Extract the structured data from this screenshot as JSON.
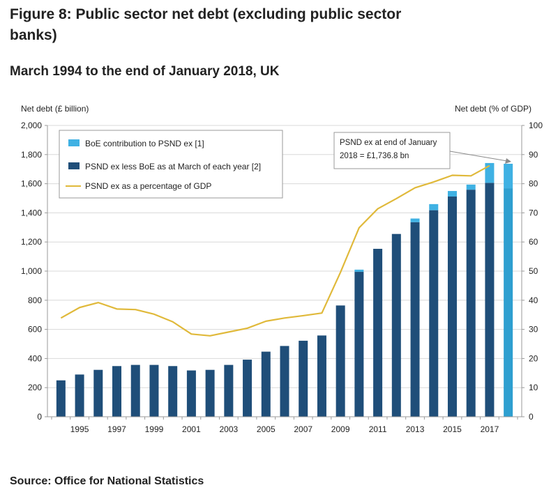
{
  "title": "Figure 8: Public sector net debt (excluding public sector banks)",
  "subtitle": "March 1994 to the end of January 2018, UK",
  "source": "Source: Office for National Statistics",
  "colors": {
    "boe": "#3fb1e3",
    "psnd": "#1f4e79",
    "latest": "#2e9fd0",
    "line": "#e0b93a",
    "grid": "#d9d9d9"
  },
  "chart_data": {
    "type": "bar",
    "ylabel": "Net debt (£ billion)",
    "y2label": "Net debt (% of GDP)",
    "ylim": [
      0,
      2000
    ],
    "y2lim": [
      0,
      100
    ],
    "yticks": [
      "0",
      "200",
      "400",
      "600",
      "800",
      "1,000",
      "1,200",
      "1,400",
      "1,600",
      "1,800",
      "2,000"
    ],
    "y2ticks": [
      "0",
      "10",
      "20",
      "30",
      "40",
      "50",
      "60",
      "70",
      "80",
      "90",
      "100"
    ],
    "categories": [
      "1994",
      "1995",
      "1996",
      "1997",
      "1998",
      "1999",
      "2000",
      "2001",
      "2002",
      "2003",
      "2004",
      "2005",
      "2006",
      "2007",
      "2008",
      "2009",
      "2010",
      "2011",
      "2012",
      "2013",
      "2014",
      "2015",
      "2016",
      "2017",
      "2018"
    ],
    "xtick_labels": [
      "1995",
      "1997",
      "1999",
      "2001",
      "2003",
      "2005",
      "2007",
      "2009",
      "2011",
      "2013",
      "2015",
      "2017"
    ],
    "stacked": true,
    "series": [
      {
        "name": "PSND ex less BoE as at March of each year [2]",
        "kind": "bar",
        "values": [
          250,
          290,
          322,
          348,
          356,
          356,
          348,
          318,
          322,
          356,
          392,
          447,
          486,
          522,
          558,
          764,
          995,
          1153,
          1255,
          1336,
          1418,
          1512,
          1559,
          1606,
          1569
        ]
      },
      {
        "name": "BoE contribution to PSND ex [1]",
        "kind": "bar",
        "values": [
          0,
          0,
          0,
          0,
          0,
          0,
          0,
          0,
          0,
          0,
          0,
          0,
          0,
          0,
          0,
          0,
          15,
          0,
          0,
          25,
          42,
          38,
          35,
          136,
          168
        ]
      },
      {
        "name": "PSND ex as a percentage of GDP",
        "kind": "line",
        "axis": "right",
        "values": [
          33.9,
          37.5,
          39.2,
          37.0,
          36.8,
          35.2,
          32.6,
          28.4,
          27.8,
          29.1,
          30.4,
          32.8,
          33.9,
          34.7,
          35.6,
          49.6,
          64.9,
          71.4,
          74.9,
          78.6,
          80.6,
          82.9,
          82.7,
          86.2,
          null
        ]
      }
    ],
    "annotation": "PSND ex at end of January 2018 = £1,736.8 bn",
    "annotation_lines": [
      "PSND ex at end of January",
      "2018 = £1,736.8 bn"
    ],
    "grid": true,
    "legend_position": "top-left"
  }
}
